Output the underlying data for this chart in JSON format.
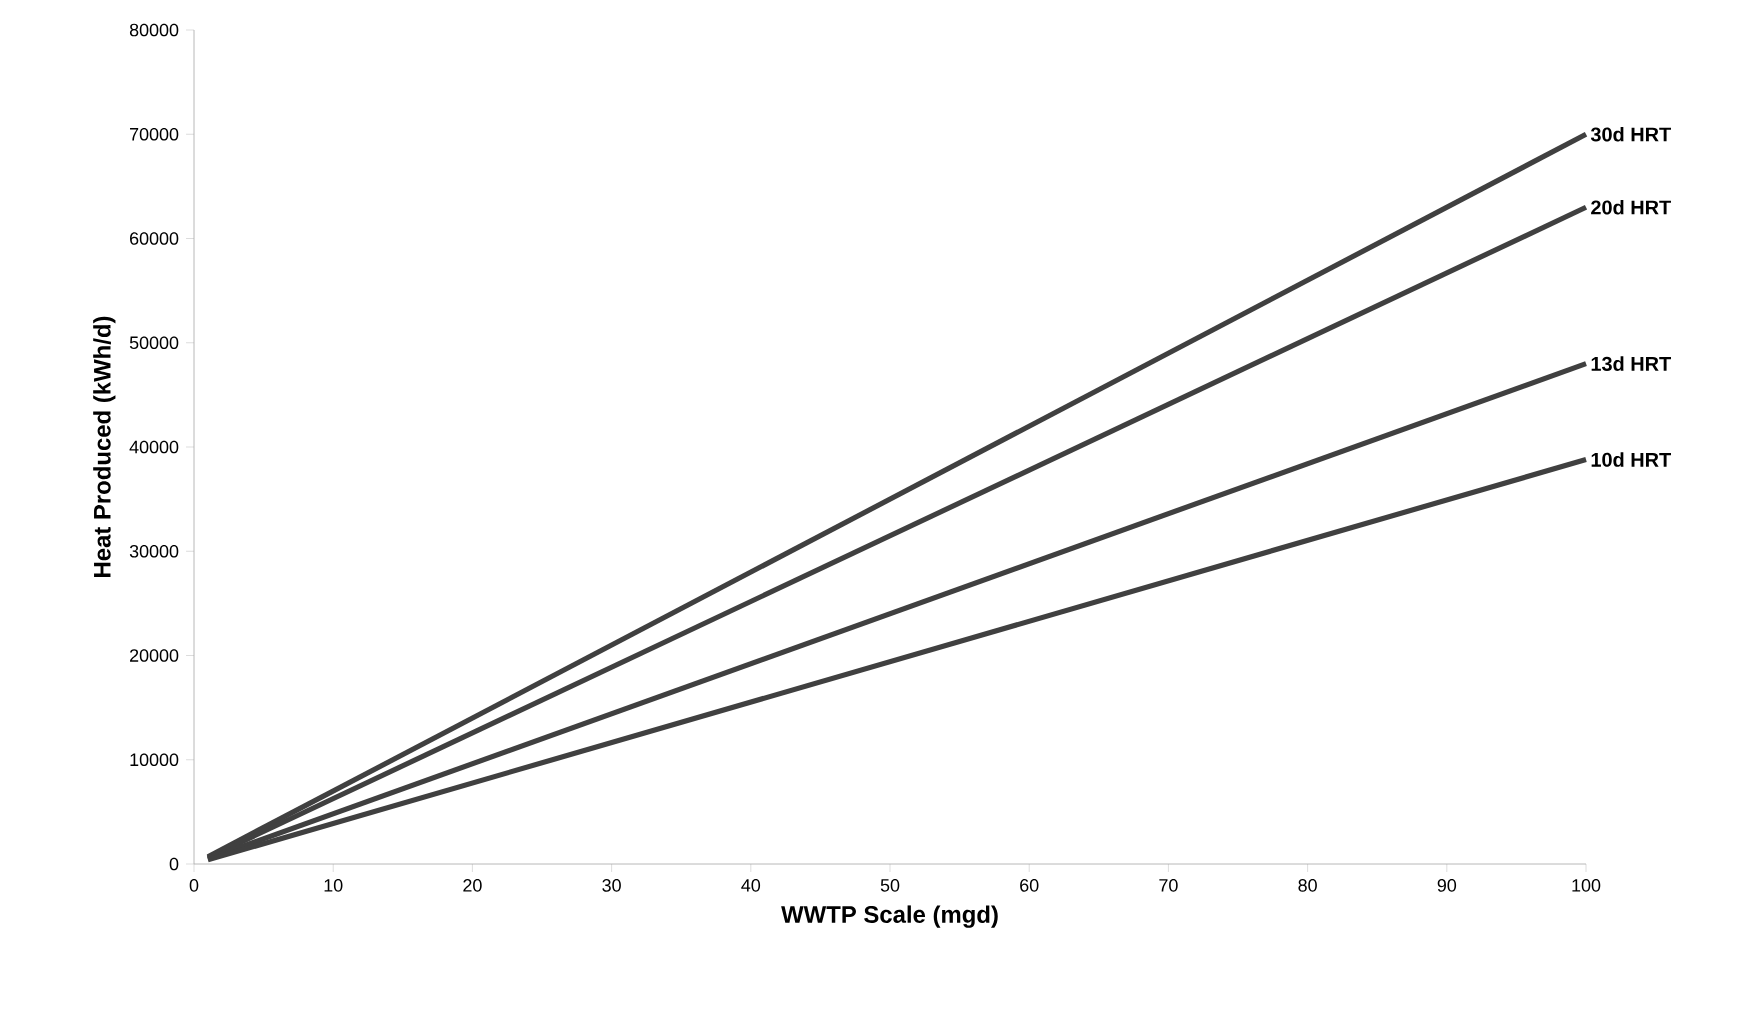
{
  "chart_data": {
    "type": "line",
    "xlabel": "WWTP Scale (mgd)",
    "ylabel": "Heat Produced (kWh/d)",
    "xlim": [
      0,
      100
    ],
    "xticks": [
      0,
      10,
      20,
      30,
      40,
      50,
      60,
      70,
      80,
      90,
      100
    ],
    "ylim": [
      0,
      80000
    ],
    "yticks": [
      0,
      10000,
      20000,
      30000,
      40000,
      50000,
      60000,
      70000,
      80000
    ],
    "grid": false,
    "legend": false,
    "marker": "none",
    "line_style": "solid",
    "x": [
      1,
      100
    ],
    "series": [
      {
        "name": "30d HRT",
        "color": "#404040",
        "values": [
          700,
          70000
        ]
      },
      {
        "name": "20d HRT",
        "color": "#404040",
        "values": [
          600,
          63000
        ]
      },
      {
        "name": "13d HRT",
        "color": "#404040",
        "values": [
          500,
          48000
        ]
      },
      {
        "name": "10d HRT",
        "color": "#404040",
        "values": [
          400,
          38800
        ]
      }
    ]
  }
}
